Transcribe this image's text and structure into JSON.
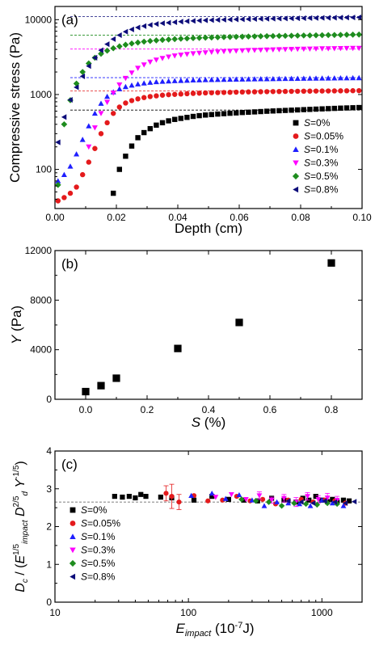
{
  "chart_data": [
    {
      "type": "scatter",
      "panel_label": "(a)",
      "xlabel": "Depth (cm)",
      "ylabel": "Compressive stress (Pa)",
      "xlim": [
        0,
        0.1
      ],
      "ylim": [
        30,
        15000
      ],
      "yscale": "log",
      "xticks": [
        "0.00",
        "0.02",
        "0.04",
        "0.06",
        "0.08",
        "0.10"
      ],
      "yticks": [
        "100",
        "1000",
        "10000"
      ],
      "legend_placement": "bottom-right",
      "series": [
        {
          "name": "S=0%",
          "color": "#000000",
          "marker": "square",
          "plateau": 620,
          "x": [
            0.019,
            0.021,
            0.023,
            0.025,
            0.027,
            0.029,
            0.031,
            0.033,
            0.035,
            0.037,
            0.039,
            0.041,
            0.043,
            0.045,
            0.047,
            0.049,
            0.051,
            0.053,
            0.055,
            0.057,
            0.059,
            0.061,
            0.063,
            0.065,
            0.067,
            0.069,
            0.071,
            0.073,
            0.075,
            0.077,
            0.079,
            0.081,
            0.083,
            0.085,
            0.087,
            0.089,
            0.091,
            0.093,
            0.095,
            0.097,
            0.099
          ],
          "y": [
            48,
            100,
            150,
            205,
            265,
            310,
            350,
            390,
            420,
            445,
            465,
            480,
            495,
            510,
            522,
            532,
            540,
            548,
            555,
            562,
            568,
            575,
            580,
            586,
            592,
            598,
            603,
            608,
            613,
            618,
            623,
            628,
            633,
            638,
            643,
            648,
            653,
            658,
            662,
            666,
            670
          ]
        },
        {
          "name": "S=0.05%",
          "color": "#e41a1c",
          "marker": "circle",
          "plateau": 1120,
          "x": [
            0.001,
            0.003,
            0.005,
            0.007,
            0.009,
            0.011,
            0.013,
            0.015,
            0.017,
            0.019,
            0.021,
            0.023,
            0.025,
            0.027,
            0.029,
            0.031,
            0.033,
            0.035,
            0.037,
            0.039,
            0.041,
            0.043,
            0.045,
            0.047,
            0.049,
            0.051,
            0.053,
            0.055,
            0.057,
            0.059,
            0.061,
            0.063,
            0.065,
            0.067,
            0.069,
            0.071,
            0.073,
            0.075,
            0.077,
            0.079,
            0.081,
            0.083,
            0.085,
            0.087,
            0.089,
            0.091,
            0.093,
            0.095,
            0.097,
            0.099
          ],
          "y": [
            38,
            42,
            48,
            58,
            85,
            125,
            190,
            300,
            420,
            560,
            680,
            770,
            830,
            875,
            910,
            940,
            960,
            980,
            995,
            1005,
            1015,
            1025,
            1035,
            1042,
            1050,
            1055,
            1060,
            1065,
            1070,
            1075,
            1080,
            1083,
            1086,
            1089,
            1092,
            1095,
            1098,
            1100,
            1102,
            1105,
            1108,
            1110,
            1112,
            1114,
            1116,
            1118,
            1120,
            1122,
            1124,
            1126
          ]
        },
        {
          "name": "S=0.1%",
          "color": "#1f1fff",
          "marker": "triangle-up",
          "plateau": 1680,
          "x": [
            0.001,
            0.003,
            0.005,
            0.007,
            0.009,
            0.011,
            0.013,
            0.015,
            0.017,
            0.019,
            0.021,
            0.023,
            0.025,
            0.027,
            0.029,
            0.031,
            0.033,
            0.035,
            0.037,
            0.039,
            0.041,
            0.043,
            0.045,
            0.047,
            0.049,
            0.051,
            0.053,
            0.055,
            0.057,
            0.059,
            0.061,
            0.063,
            0.065,
            0.067,
            0.069,
            0.071,
            0.073,
            0.075,
            0.077,
            0.079,
            0.081,
            0.083,
            0.085,
            0.087,
            0.089,
            0.091,
            0.093,
            0.095,
            0.097,
            0.099
          ],
          "y": [
            70,
            85,
            110,
            160,
            250,
            380,
            560,
            760,
            940,
            1080,
            1190,
            1270,
            1330,
            1380,
            1420,
            1450,
            1475,
            1495,
            1510,
            1525,
            1535,
            1545,
            1555,
            1562,
            1570,
            1576,
            1582,
            1588,
            1593,
            1598,
            1602,
            1606,
            1610,
            1614,
            1618,
            1622,
            1626,
            1630,
            1634,
            1638,
            1642,
            1645,
            1648,
            1651,
            1654,
            1657,
            1660,
            1663,
            1666,
            1670
          ]
        },
        {
          "name": "S=0.3%",
          "color": "#ff00ff",
          "marker": "triangle-down",
          "plateau": 4050,
          "x": [
            0.011,
            0.013,
            0.015,
            0.017,
            0.019,
            0.021,
            0.023,
            0.025,
            0.027,
            0.029,
            0.031,
            0.033,
            0.035,
            0.037,
            0.039,
            0.041,
            0.043,
            0.045,
            0.047,
            0.049,
            0.051,
            0.053,
            0.055,
            0.057,
            0.059,
            0.061,
            0.063,
            0.065,
            0.067,
            0.069,
            0.071,
            0.073,
            0.075,
            0.077,
            0.079,
            0.081,
            0.083,
            0.085,
            0.087,
            0.089,
            0.091,
            0.093,
            0.095,
            0.097,
            0.099
          ],
          "y": [
            200,
            360,
            560,
            790,
            1050,
            1350,
            1650,
            1950,
            2250,
            2500,
            2720,
            2900,
            3050,
            3180,
            3290,
            3380,
            3450,
            3520,
            3580,
            3630,
            3680,
            3720,
            3760,
            3800,
            3830,
            3860,
            3890,
            3910,
            3930,
            3950,
            3970,
            3990,
            4010,
            4025,
            4040,
            4055,
            4070,
            4085,
            4100,
            4110,
            4120,
            4130,
            4140,
            4150,
            4160
          ]
        },
        {
          "name": "S=0.5%",
          "color": "#1e8c1e",
          "marker": "diamond",
          "plateau": 6200,
          "x": [
            0.001,
            0.003,
            0.005,
            0.007,
            0.009,
            0.011,
            0.013,
            0.015,
            0.017,
            0.019,
            0.021,
            0.023,
            0.025,
            0.027,
            0.029,
            0.031,
            0.033,
            0.035,
            0.037,
            0.039,
            0.041,
            0.043,
            0.045,
            0.047,
            0.049,
            0.051,
            0.053,
            0.055,
            0.057,
            0.059,
            0.061,
            0.063,
            0.065,
            0.067,
            0.069,
            0.071,
            0.073,
            0.075,
            0.077,
            0.079,
            0.081,
            0.083,
            0.085,
            0.087,
            0.089,
            0.091,
            0.093,
            0.095,
            0.097,
            0.099
          ],
          "y": [
            62,
            400,
            840,
            1400,
            2000,
            2600,
            3100,
            3500,
            3850,
            4150,
            4400,
            4620,
            4800,
            4950,
            5080,
            5190,
            5280,
            5360,
            5430,
            5500,
            5560,
            5610,
            5660,
            5700,
            5740,
            5780,
            5810,
            5840,
            5870,
            5900,
            5925,
            5950,
            5975,
            6000,
            6020,
            6040,
            6060,
            6080,
            6100,
            6120,
            6140,
            6160,
            6180,
            6200,
            6220,
            6240,
            6260,
            6280,
            6300,
            6320
          ]
        },
        {
          "name": "S=0.8%",
          "color": "#0d0d7a",
          "marker": "triangle-left",
          "plateau": 11000,
          "x": [
            0.001,
            0.003,
            0.005,
            0.007,
            0.009,
            0.011,
            0.013,
            0.015,
            0.017,
            0.019,
            0.021,
            0.023,
            0.025,
            0.027,
            0.029,
            0.031,
            0.033,
            0.035,
            0.037,
            0.039,
            0.041,
            0.043,
            0.045,
            0.047,
            0.049,
            0.051,
            0.053,
            0.055,
            0.057,
            0.059,
            0.061,
            0.063,
            0.065,
            0.067,
            0.069,
            0.071,
            0.073,
            0.075,
            0.077,
            0.079,
            0.081,
            0.083,
            0.085,
            0.087,
            0.089,
            0.091,
            0.093,
            0.095,
            0.097,
            0.099
          ],
          "y": [
            230,
            500,
            850,
            1250,
            1750,
            2400,
            3100,
            3900,
            4700,
            5500,
            6200,
            6900,
            7400,
            7850,
            8200,
            8500,
            8750,
            8950,
            9100,
            9250,
            9400,
            9520,
            9620,
            9710,
            9790,
            9860,
            9920,
            9980,
            10030,
            10080,
            10120,
            10160,
            10200,
            10240,
            10280,
            10310,
            10340,
            10370,
            10400,
            10430,
            10460,
            10490,
            10520,
            10550,
            10580,
            10610,
            10640,
            10670,
            10700,
            10720
          ]
        }
      ]
    },
    {
      "type": "scatter",
      "panel_label": "(b)",
      "xlabel": "S (%)",
      "ylabel": "Y (Pa)",
      "xlim": [
        -0.1,
        0.9
      ],
      "ylim": [
        0,
        12000
      ],
      "xticks": [
        "0.0",
        "0.2",
        "0.4",
        "0.6",
        "0.8"
      ],
      "yticks": [
        "0",
        "4000",
        "8000",
        "12000"
      ],
      "series": [
        {
          "color": "#000000",
          "marker": "square",
          "x": [
            0,
            0.05,
            0.1,
            0.3,
            0.5,
            0.8
          ],
          "y": [
            620,
            1100,
            1700,
            4100,
            6200,
            11000
          ]
        }
      ]
    },
    {
      "type": "scatter",
      "panel_label": "(c)",
      "xlabel": "E_impact (10^-7 J)",
      "ylabel": "D_c / (E_impact^1/5 D_d^2/5 Y^-1/5)",
      "xlim": [
        10,
        2000
      ],
      "ylim": [
        0,
        4
      ],
      "xscale": "log",
      "xticks": [
        "10",
        "100",
        "1000"
      ],
      "yticks": [
        "0",
        "1",
        "2",
        "3",
        "4"
      ],
      "reference_line": 2.65,
      "legend_placement": "bottom-left",
      "series": [
        {
          "name": "S=0%",
          "color": "#000000",
          "marker": "square",
          "x": [
            28,
            32,
            36,
            40,
            44,
            48,
            62,
            75,
            110,
            150,
            200,
            260,
            330,
            420,
            520,
            640,
            720,
            800,
            900,
            1000,
            1100,
            1200,
            1300,
            1450,
            1600
          ],
          "y": [
            2.8,
            2.78,
            2.8,
            2.76,
            2.85,
            2.8,
            2.78,
            2.76,
            2.7,
            2.8,
            2.72,
            2.7,
            2.68,
            2.75,
            2.7,
            2.65,
            2.75,
            2.7,
            2.8,
            2.7,
            2.66,
            2.72,
            2.65,
            2.7,
            2.68
          ]
        },
        {
          "name": "S=0.05%",
          "color": "#e41a1c",
          "marker": "circle",
          "x": [
            68,
            75,
            85,
            110,
            140,
            180,
            230,
            290,
            360,
            450,
            560,
            700,
            860,
            1050,
            1250,
            1500
          ],
          "y": [
            2.88,
            2.8,
            2.65,
            2.82,
            2.68,
            2.7,
            2.8,
            2.68,
            2.72,
            2.6,
            2.7,
            2.72,
            2.65,
            2.7,
            2.68,
            2.62
          ],
          "y_err": [
            0.2,
            0.32,
            0.2,
            0,
            0,
            0,
            0,
            0,
            0,
            0,
            0,
            0,
            0,
            0,
            0,
            0
          ]
        },
        {
          "name": "S=0.1%",
          "color": "#1f1fff",
          "marker": "triangle-up",
          "x": [
            105,
            150,
            190,
            240,
            300,
            370,
            460,
            560,
            680,
            820,
            1000,
            1200,
            1450
          ],
          "y": [
            2.82,
            2.88,
            2.74,
            2.84,
            2.7,
            2.55,
            2.65,
            2.62,
            2.6,
            2.55,
            2.7,
            2.62,
            2.55
          ]
        },
        {
          "name": "S=0.3%",
          "color": "#ff00ff",
          "marker": "triangle-down",
          "x": [
            160,
            210,
            270,
            340,
            420,
            520,
            640,
            780,
            940,
            1100,
            1300
          ],
          "y": [
            2.78,
            2.85,
            2.72,
            2.82,
            2.7,
            2.75,
            2.65,
            2.8,
            2.72,
            2.76,
            2.7
          ],
          "y_err": [
            0,
            0,
            0,
            0.1,
            0.08,
            0.1,
            0.12,
            0.1,
            0.1,
            0.12,
            0.1
          ]
        },
        {
          "name": "S=0.5%",
          "color": "#1e8c1e",
          "marker": "diamond",
          "x": [
            250,
            320,
            400,
            500,
            620,
            760,
            920,
            1100,
            1300
          ],
          "y": [
            2.72,
            2.68,
            2.65,
            2.55,
            2.62,
            2.6,
            2.58,
            2.62,
            2.6
          ]
        },
        {
          "name": "S=0.8%",
          "color": "#0d0d7a",
          "marker": "triangle-left",
          "x": [
            560,
            700,
            860,
            1050,
            1250,
            1500,
            1750
          ],
          "y": [
            2.68,
            2.65,
            2.62,
            2.68,
            2.65,
            2.62,
            2.66
          ]
        }
      ]
    }
  ]
}
